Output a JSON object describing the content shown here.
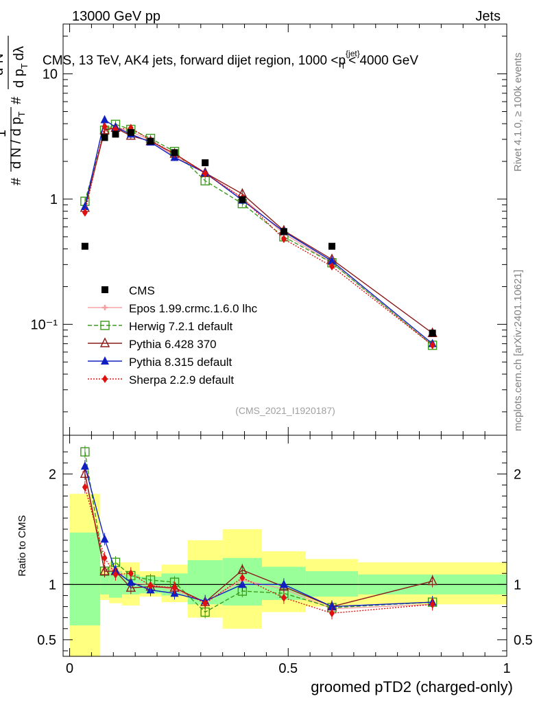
{
  "header": {
    "left": "13000 GeV pp",
    "right": "Jets"
  },
  "chart_data": {
    "type": "line",
    "title": "CMS, 13 TeV, AK4 jets, forward dijet region, 1000 <p",
    "title_sup": "{jet}",
    "title_sub": "T",
    "title_tail": "< 4000 GeV",
    "analysis_id": "(CMS_2021_I1920187)",
    "side_label_top": "Rivet 4.1.0, ≥ 100k events",
    "side_label_bottom": "mcplots.cern.ch [arXiv:2401.10621]",
    "ylabel_parts": {
      "hash1": "#",
      "one": "1",
      "dN": "d N / d p",
      "T": "T",
      "hash2": "#",
      "d2N_num": "d",
      "d2N_exp": "2",
      "d2N_N": "N",
      "dpT": "d p",
      "dlambda": "dλ"
    },
    "xlabel": "groomed pTD2 (charged-only)",
    "ratio_ylabel": "Ratio to CMS",
    "xlim": [
      -0.015,
      1.0
    ],
    "ylim_main": [
      0.013,
      25
    ],
    "ylim_ratio": [
      0.35,
      2.35
    ],
    "x_ticks": [
      {
        "v": 0,
        "label": "0"
      },
      {
        "v": 0.5,
        "label": "0.5"
      },
      {
        "v": 1,
        "label": "1"
      }
    ],
    "y_ticks_main": [
      {
        "v": 0.1,
        "label": "10⁻¹"
      },
      {
        "v": 1,
        "label": "1"
      },
      {
        "v": 10,
        "label": "10"
      }
    ],
    "y_ticks_ratio": [
      {
        "v": 0.5,
        "label": "0.5"
      },
      {
        "v": 1,
        "label": "1"
      },
      {
        "v": 2,
        "label": "2"
      }
    ],
    "bin_edges": [
      0,
      0.07,
      0.09,
      0.12,
      0.16,
      0.21,
      0.27,
      0.35,
      0.44,
      0.54,
      0.66,
      1.0
    ],
    "band_inner": [
      [
        0.63,
        1.47
      ],
      [
        0.91,
        1.09
      ],
      [
        0.88,
        1.12
      ],
      [
        0.91,
        1.09
      ],
      [
        0.92,
        1.07
      ],
      [
        0.9,
        1.1
      ],
      [
        0.82,
        1.22
      ],
      [
        0.81,
        1.24
      ],
      [
        0.86,
        1.16
      ],
      [
        0.89,
        1.12
      ],
      [
        0.91,
        1.09
      ]
    ],
    "band_outer": [
      [
        0.27,
        1.82
      ],
      [
        0.86,
        1.15
      ],
      [
        0.83,
        1.2
      ],
      [
        0.81,
        1.2
      ],
      [
        0.89,
        1.12
      ],
      [
        0.84,
        1.18
      ],
      [
        0.7,
        1.4
      ],
      [
        0.6,
        1.5
      ],
      [
        0.75,
        1.3
      ],
      [
        0.8,
        1.23
      ],
      [
        0.82,
        1.2
      ]
    ],
    "data": {
      "name": "CMS",
      "x": [
        0.035,
        0.08,
        0.105,
        0.14,
        0.185,
        0.24,
        0.31,
        0.395,
        0.49,
        0.6,
        0.83
      ],
      "y": [
        0.42,
        3.1,
        3.3,
        3.4,
        2.9,
        2.35,
        1.95,
        0.99,
        0.55,
        0.42,
        0.085
      ]
    },
    "series": [
      {
        "name": "Epos 1.99.crmc.1.6.0 lhc",
        "color": "#f4a0a0",
        "dash": "",
        "marker": "cross",
        "x": [
          0.035,
          0.08,
          0.105,
          0.14,
          0.185,
          0.24,
          0.31,
          0.395,
          0.49,
          0.6,
          0.83
        ],
        "y": [
          0.85,
          3.5,
          3.75,
          3.45,
          2.95,
          2.2,
          1.62,
          1.02,
          0.53,
          0.31,
          0.068
        ],
        "ratio": [
          2.02,
          1.13,
          1.14,
          1.01,
          1.0,
          0.95,
          0.84,
          1.04,
          0.96,
          0.78,
          0.82
        ]
      },
      {
        "name": "Herwig 7.2.1 default",
        "color": "#3a9a1a",
        "dash": "6,3",
        "marker": "open-square",
        "x": [
          0.035,
          0.08,
          0.105,
          0.14,
          0.185,
          0.24,
          0.31,
          0.395,
          0.49,
          0.6,
          0.83
        ],
        "y": [
          0.96,
          3.55,
          3.95,
          3.6,
          3.05,
          2.4,
          1.4,
          0.92,
          0.5,
          0.31,
          0.068
        ],
        "ratio": [
          2.2,
          1.12,
          1.2,
          1.08,
          1.04,
          1.02,
          0.75,
          0.94,
          0.92,
          0.79,
          0.84
        ]
      },
      {
        "name": "Pythia 6.428 370",
        "color": "#8b1a1a",
        "dash": "",
        "marker": "open-triangle",
        "x": [
          0.035,
          0.08,
          0.105,
          0.14,
          0.185,
          0.24,
          0.31,
          0.395,
          0.49,
          0.6,
          0.83
        ],
        "y": [
          0.85,
          3.55,
          3.7,
          3.2,
          2.9,
          2.3,
          1.62,
          1.1,
          0.56,
          0.33,
          0.085
        ],
        "ratio": [
          2.0,
          1.12,
          1.12,
          0.97,
          0.98,
          0.97,
          0.84,
          1.13,
          0.98,
          0.8,
          1.03
        ]
      },
      {
        "name": "Pythia 8.315 default",
        "color": "#1020c0",
        "dash": "",
        "marker": "filled-triangle",
        "x": [
          0.035,
          0.08,
          0.105,
          0.14,
          0.185,
          0.24,
          0.31,
          0.395,
          0.49,
          0.6,
          0.83
        ],
        "y": [
          0.87,
          4.3,
          3.75,
          3.3,
          2.85,
          2.15,
          1.62,
          0.98,
          0.55,
          0.32,
          0.07
        ],
        "ratio": [
          2.07,
          1.41,
          1.12,
          1.02,
          0.95,
          0.92,
          0.85,
          1.0,
          1.0,
          0.8,
          0.84
        ]
      },
      {
        "name": "Sherpa 2.2.9 default",
        "color": "#e01010",
        "dash": "2,2",
        "marker": "filled-diamond",
        "x": [
          0.035,
          0.08,
          0.105,
          0.14,
          0.185,
          0.24,
          0.31,
          0.395,
          0.49,
          0.6,
          0.83
        ],
        "y": [
          0.78,
          3.8,
          3.6,
          3.7,
          2.95,
          2.3,
          1.6,
          1.02,
          0.48,
          0.29,
          0.068
        ],
        "ratio": [
          1.88,
          1.24,
          1.09,
          1.1,
          0.99,
          0.97,
          0.83,
          1.06,
          0.88,
          0.74,
          0.82
        ]
      }
    ]
  }
}
